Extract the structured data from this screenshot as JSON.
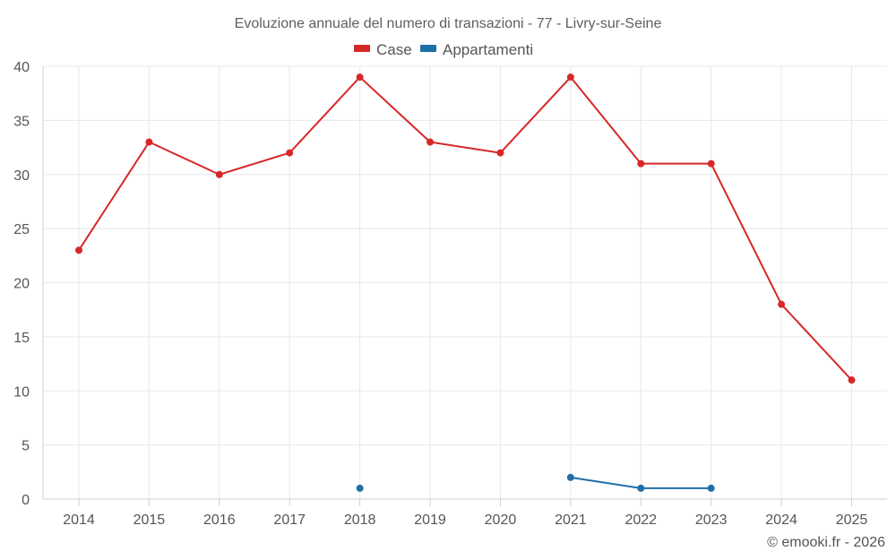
{
  "chart_data": {
    "type": "line",
    "title": "Evoluzione annuale del numero di transazioni - 77 - Livry-sur-Seine",
    "categories": [
      "2014",
      "2015",
      "2016",
      "2017",
      "2018",
      "2019",
      "2020",
      "2021",
      "2022",
      "2023",
      "2024",
      "2025"
    ],
    "series": [
      {
        "name": "Case",
        "color": "#d62728",
        "values": [
          23,
          33,
          30,
          32,
          39,
          33,
          32,
          39,
          31,
          31,
          18,
          11
        ]
      },
      {
        "name": "Appartamenti",
        "color": "#1f6fa8",
        "values": [
          null,
          null,
          null,
          null,
          1,
          null,
          null,
          2,
          1,
          1,
          null,
          null
        ]
      }
    ],
    "y_ticks": [
      "0",
      "5",
      "10",
      "15",
      "20",
      "25",
      "30",
      "35",
      "40"
    ],
    "ylim": [
      0,
      40
    ],
    "xlabel": "",
    "ylabel": "",
    "grid": true,
    "legend_position": "top-center"
  },
  "footer": {
    "copyright": "© emooki.fr - 2026"
  }
}
